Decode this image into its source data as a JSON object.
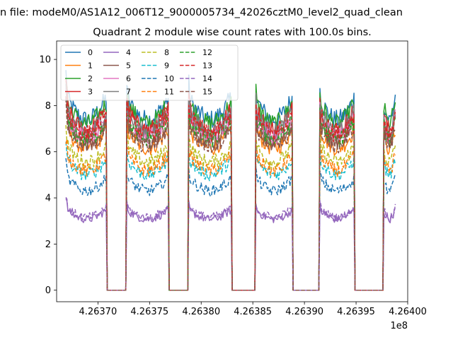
{
  "chart_data": {
    "type": "line",
    "suptitle": "n file: modeM0/AS1A12_006T12_9000005734_42026cztM0_level2_quad_clean",
    "title": "Quadrant 2 module wise count rates with 100.0s bins.",
    "xlabel": "",
    "ylabel": "",
    "x_offset_label": "1e8",
    "xlim": [
      426366000.0,
      426400000.0
    ],
    "ylim": [
      -0.5,
      10.8
    ],
    "xticks": [
      426370000.0,
      426375000.0,
      426380000.0,
      426385000.0,
      426390000.0,
      426395000.0,
      426400000.0
    ],
    "xtick_labels": [
      "4.26370",
      "4.26375",
      "4.26380",
      "4.26385",
      "4.26390",
      "4.26395",
      "4.26400"
    ],
    "yticks": [
      0,
      2,
      4,
      6,
      8,
      10
    ],
    "ytick_labels": [
      "0",
      "2",
      "4",
      "6",
      "8",
      "10"
    ],
    "bin_seconds": 100,
    "x_start": 426366900,
    "x_end": 426398800,
    "gaps": [
      [
        426370900,
        426372700
      ],
      [
        426376900,
        426378700
      ],
      [
        426383000,
        426385200
      ],
      [
        426388900,
        426391400
      ],
      [
        426394900,
        426397600
      ]
    ],
    "legend_loc": "upper left",
    "legend_ncol": 5,
    "series": [
      {
        "name": "0",
        "color": "#1f77b4",
        "dash": "solid",
        "level": 8.4
      },
      {
        "name": "1",
        "color": "#ff7f0e",
        "dash": "solid",
        "level": 7.0
      },
      {
        "name": "2",
        "color": "#2ca02c",
        "dash": "solid",
        "level": 8.2
      },
      {
        "name": "3",
        "color": "#d62728",
        "dash": "solid",
        "level": 7.9
      },
      {
        "name": "4",
        "color": "#9467bd",
        "dash": "solid",
        "level": 3.5
      },
      {
        "name": "5",
        "color": "#8c564b",
        "dash": "solid",
        "level": 7.3
      },
      {
        "name": "6",
        "color": "#e377c2",
        "dash": "solid",
        "level": 7.6
      },
      {
        "name": "7",
        "color": "#7f7f7f",
        "dash": "solid",
        "level": 7.8
      },
      {
        "name": "8",
        "color": "#bcbd22",
        "dash": "dashed",
        "level": 6.3
      },
      {
        "name": "9",
        "color": "#17becf",
        "dash": "dashed",
        "level": 5.7
      },
      {
        "name": "10",
        "color": "#1f77b4",
        "dash": "dashed",
        "level": 4.9
      },
      {
        "name": "11",
        "color": "#ff7f0e",
        "dash": "dashed",
        "level": 5.9
      },
      {
        "name": "12",
        "color": "#2ca02c",
        "dash": "dashed",
        "level": 7.4
      },
      {
        "name": "13",
        "color": "#d62728",
        "dash": "dashed",
        "level": 7.7
      },
      {
        "name": "14",
        "color": "#9467bd",
        "dash": "dashed",
        "level": 3.6
      },
      {
        "name": "15",
        "color": "#8c564b",
        "dash": "dashed",
        "level": 7.1
      }
    ]
  }
}
